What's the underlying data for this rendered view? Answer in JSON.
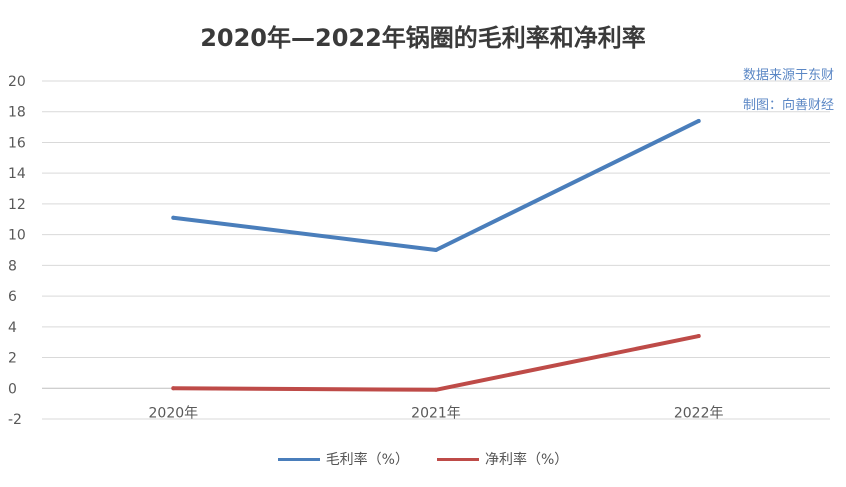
{
  "chart_data": {
    "type": "line",
    "title": "2020年—2022年锅圈的毛利率和净利率",
    "categories": [
      "2020年",
      "2021年",
      "2022年"
    ],
    "series": [
      {
        "name": "毛利率（%）",
        "values": [
          11.1,
          9.0,
          17.4
        ],
        "color": "#4a7ebb"
      },
      {
        "name": "净利率（%）",
        "values": [
          0.0,
          -0.1,
          3.4
        ],
        "color": "#be4b48"
      }
    ],
    "ylim": [
      -2,
      20
    ],
    "yticks": [
      "-2",
      "0",
      "2",
      "4",
      "6",
      "8",
      "10",
      "12",
      "14",
      "16",
      "18",
      "20"
    ],
    "grid": true,
    "legend_position": "bottom"
  },
  "source": {
    "line1": "数据来源于东财",
    "line2": "制图：向善财经"
  }
}
